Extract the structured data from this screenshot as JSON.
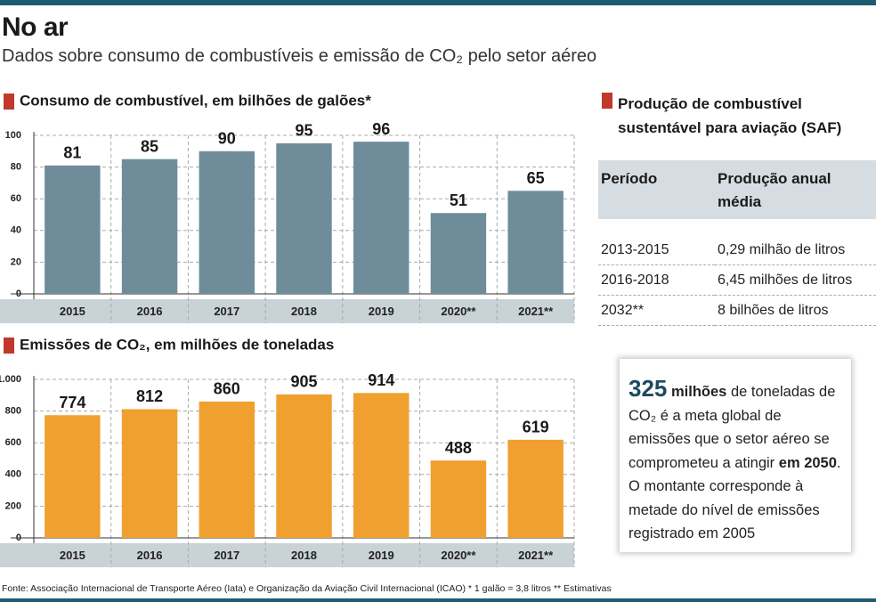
{
  "header": {
    "title": "No ar",
    "subtitle": "Dados sobre consumo de combustíveis e emissão de CO₂ pelo setor aéreo"
  },
  "chart_data": [
    {
      "type": "bar",
      "title": "Consumo de combustível, em bilhões de galões*",
      "categories": [
        "2015",
        "2016",
        "2017",
        "2018",
        "2019",
        "2020**",
        "2021**"
      ],
      "values": [
        81,
        85,
        90,
        95,
        96,
        51,
        65
      ],
      "color": "#6f8c9b",
      "ylim": [
        0,
        100
      ],
      "yticks": [
        0,
        20,
        40,
        60,
        80,
        100
      ],
      "grid": true
    },
    {
      "type": "bar",
      "title": "Emissões de CO₂, em milhões de toneladas",
      "categories": [
        "2015",
        "2016",
        "2017",
        "2018",
        "2019",
        "2020**",
        "2021**"
      ],
      "values": [
        774,
        812,
        860,
        905,
        914,
        488,
        619
      ],
      "color": "#f0a02f",
      "ylim": [
        0,
        1000
      ],
      "yticks": [
        0,
        200,
        400,
        600,
        800,
        {
          "value": 1000,
          "label": "1.000"
        }
      ],
      "grid": true
    }
  ],
  "table": {
    "title": "Produção de combustível sustentável para aviação (SAF)",
    "header": [
      "Período",
      "Produção anual média"
    ],
    "rows": [
      [
        "2013-2015",
        "0,29 milhão de litros"
      ],
      [
        "2016-2018",
        "6,45 milhões de litros"
      ],
      [
        "2032**",
        "8 bilhões de litros"
      ]
    ]
  },
  "callout": {
    "lead": "325",
    "lead_unit": "milhões",
    "text": "de toneladas de CO₂ é a meta global de emissões que o setor aéreo se comprometeu a atingir",
    "emphasis": "em 2050",
    "text_end": ". O montante corresponde à metade do nível de emissões registrado em 2005"
  },
  "footer": {
    "source": "Fonte: Associação Internacional de Transporte Aéreo (Iata) e Organização da Aviação Civil Internacional (ICAO) * 1 galão = 3,8 litros ** Estimativas"
  }
}
